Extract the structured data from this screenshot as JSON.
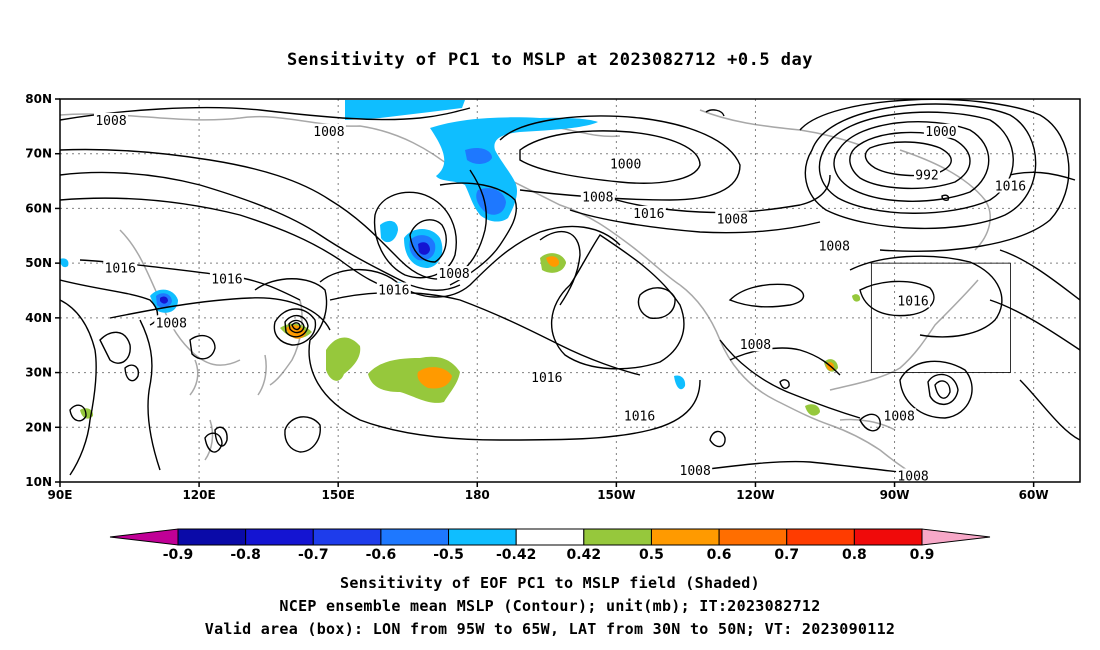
{
  "title": "Sensitivity of PC1 to MSLP at 2023082712 +0.5 day",
  "map": {
    "lat_labels": [
      "80N",
      "70N",
      "60N",
      "50N",
      "40N",
      "30N",
      "20N",
      "10N"
    ],
    "lon_labels": [
      "90E",
      "120E",
      "150E",
      "180",
      "150W",
      "120W",
      "90W",
      "60W"
    ],
    "lon_range_deg_east": [
      90,
      310
    ],
    "lat_range": [
      10,
      80
    ],
    "grid": "dotted",
    "valid_box": {
      "lon": [
        -95,
        -65
      ],
      "lat": [
        30,
        50
      ]
    },
    "contour_labels": [
      {
        "text": "1008",
        "lon": 101,
        "lat": 76
      },
      {
        "text": "1008",
        "lon": 148,
        "lat": 74
      },
      {
        "text": "1000",
        "lon": -148,
        "lat": 68
      },
      {
        "text": "1000",
        "lon": -80,
        "lat": 74
      },
      {
        "text": "992",
        "lon": -83,
        "lat": 66
      },
      {
        "text": "1016",
        "lon": -65,
        "lat": 64
      },
      {
        "text": "1008",
        "lon": -154,
        "lat": 62
      },
      {
        "text": "1016",
        "lon": -143,
        "lat": 59
      },
      {
        "text": "1008",
        "lon": -125,
        "lat": 58
      },
      {
        "text": "1016",
        "lon": 103,
        "lat": 49
      },
      {
        "text": "1016",
        "lon": 126,
        "lat": 47
      },
      {
        "text": "1008",
        "lon": 175,
        "lat": 48
      },
      {
        "text": "1016",
        "lon": 162,
        "lat": 45
      },
      {
        "text": "1008",
        "lon": -103,
        "lat": 53
      },
      {
        "text": "1016",
        "lon": -86,
        "lat": 43
      },
      {
        "text": "1008",
        "lon": 114,
        "lat": 39
      },
      {
        "text": "1008",
        "lon": -120,
        "lat": 35
      },
      {
        "text": "1016",
        "lon": -165,
        "lat": 29
      },
      {
        "text": "1016",
        "lon": -145,
        "lat": 22
      },
      {
        "text": "1008",
        "lon": -89,
        "lat": 22
      },
      {
        "text": "1008",
        "lon": -133,
        "lat": 12
      },
      {
        "text": "1008",
        "lon": -86,
        "lat": 11
      }
    ]
  },
  "colorbar": {
    "labels": [
      "-0.9",
      "-0.8",
      "-0.7",
      "-0.6",
      "-0.5",
      "-0.42",
      "0.42",
      "0.5",
      "0.6",
      "0.7",
      "0.8",
      "0.9"
    ],
    "colors": [
      "#0a0aa8",
      "#1414d2",
      "#1e3ceb",
      "#1e78ff",
      "#0fbeff",
      "#ffffff",
      "#96c83c",
      "#ff9a00",
      "#ff6e00",
      "#ff3c00",
      "#f00a0a"
    ],
    "lower_extend": "#c00096",
    "upper_extend": "#f7a8c8"
  },
  "footer": {
    "line1": "Sensitivity of EOF PC1 to MSLP field (Shaded)",
    "line2": "NCEP ensemble mean MSLP (Contour); unit(mb); IT:2023082712",
    "line3": "Valid area (box): LON from 95W to 65W, LAT from 30N to 50N; VT: 2023090112"
  }
}
